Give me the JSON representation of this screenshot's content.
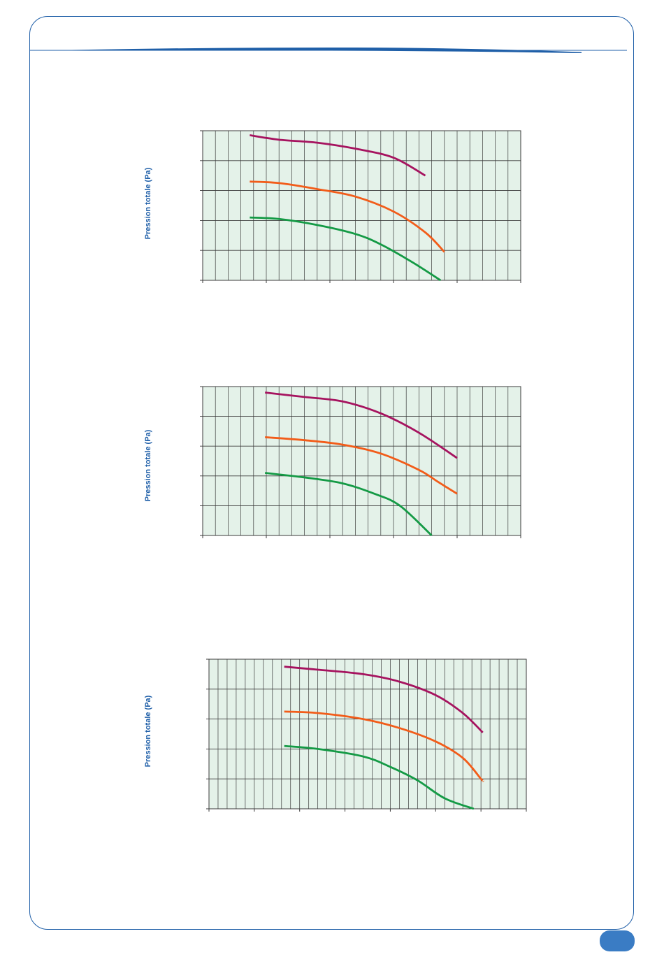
{
  "page": {
    "frame_color": "#1f5fa8",
    "tab_color": "#3a7cc4"
  },
  "chart_data": [
    {
      "type": "line",
      "ylabel": "Pression totale (Pa)",
      "xlabel": "",
      "x_divisions": 25,
      "x_major_every": 5,
      "y_divisions": 5,
      "xlim": [
        0,
        25
      ],
      "ylim": [
        0,
        5
      ],
      "grid": true,
      "background": "#e4f2e9",
      "series": [
        {
          "color": "#a6135f",
          "points": [
            [
              3.7,
              4.85
            ],
            [
              6,
              4.7
            ],
            [
              9,
              4.6
            ],
            [
              12,
              4.4
            ],
            [
              15,
              4.1
            ],
            [
              17.5,
              3.5
            ]
          ]
        },
        {
          "color": "#f25c19",
          "points": [
            [
              3.7,
              3.3
            ],
            [
              6,
              3.25
            ],
            [
              9,
              3.05
            ],
            [
              12,
              2.8
            ],
            [
              15,
              2.3
            ],
            [
              17.5,
              1.6
            ],
            [
              19,
              0.95
            ]
          ]
        },
        {
          "color": "#149a45",
          "points": [
            [
              3.7,
              2.1
            ],
            [
              6,
              2.05
            ],
            [
              9,
              1.85
            ],
            [
              12,
              1.55
            ],
            [
              14,
              1.2
            ],
            [
              16.5,
              0.6
            ],
            [
              18.7,
              0
            ]
          ]
        }
      ]
    },
    {
      "type": "line",
      "ylabel": "Pression totale (Pa)",
      "xlabel": "",
      "x_divisions": 25,
      "x_major_every": 5,
      "y_divisions": 5,
      "xlim": [
        0,
        25
      ],
      "ylim": [
        0,
        5
      ],
      "grid": true,
      "background": "#e4f2e9",
      "series": [
        {
          "color": "#a6135f",
          "points": [
            [
              4.9,
              4.8
            ],
            [
              8,
              4.65
            ],
            [
              11,
              4.5
            ],
            [
              14,
              4.1
            ],
            [
              17,
              3.45
            ],
            [
              20,
              2.6
            ]
          ]
        },
        {
          "color": "#f25c19",
          "points": [
            [
              4.9,
              3.3
            ],
            [
              8,
              3.2
            ],
            [
              11,
              3.05
            ],
            [
              14,
              2.75
            ],
            [
              17,
              2.2
            ],
            [
              18.5,
              1.8
            ],
            [
              20,
              1.4
            ]
          ]
        },
        {
          "color": "#149a45",
          "points": [
            [
              4.9,
              2.1
            ],
            [
              8,
              1.95
            ],
            [
              11,
              1.75
            ],
            [
              13.5,
              1.4
            ],
            [
              15.5,
              1.0
            ],
            [
              18,
              0
            ]
          ]
        }
      ]
    },
    {
      "type": "line",
      "ylabel": "Pression totale (Pa)",
      "xlabel": "",
      "x_divisions": 35,
      "x_major_every": 5,
      "y_divisions": 5,
      "xlim": [
        0,
        35
      ],
      "ylim": [
        0,
        5
      ],
      "grid": true,
      "background": "#e4f2e9",
      "series": [
        {
          "color": "#a6135f",
          "points": [
            [
              8.3,
              4.75
            ],
            [
              12,
              4.65
            ],
            [
              17,
              4.5
            ],
            [
              21,
              4.25
            ],
            [
              25,
              3.8
            ],
            [
              28,
              3.2
            ],
            [
              30.2,
              2.55
            ]
          ]
        },
        {
          "color": "#f25c19",
          "points": [
            [
              8.3,
              3.25
            ],
            [
              12,
              3.2
            ],
            [
              17,
              3.0
            ],
            [
              21,
              2.7
            ],
            [
              25,
              2.25
            ],
            [
              28,
              1.7
            ],
            [
              30,
              1.0
            ],
            [
              30.2,
              0.95
            ]
          ]
        },
        {
          "color": "#149a45",
          "points": [
            [
              8.3,
              2.1
            ],
            [
              12,
              2.0
            ],
            [
              17,
              1.75
            ],
            [
              20,
              1.4
            ],
            [
              23,
              0.95
            ],
            [
              26,
              0.35
            ],
            [
              29.2,
              0
            ]
          ]
        }
      ]
    }
  ]
}
